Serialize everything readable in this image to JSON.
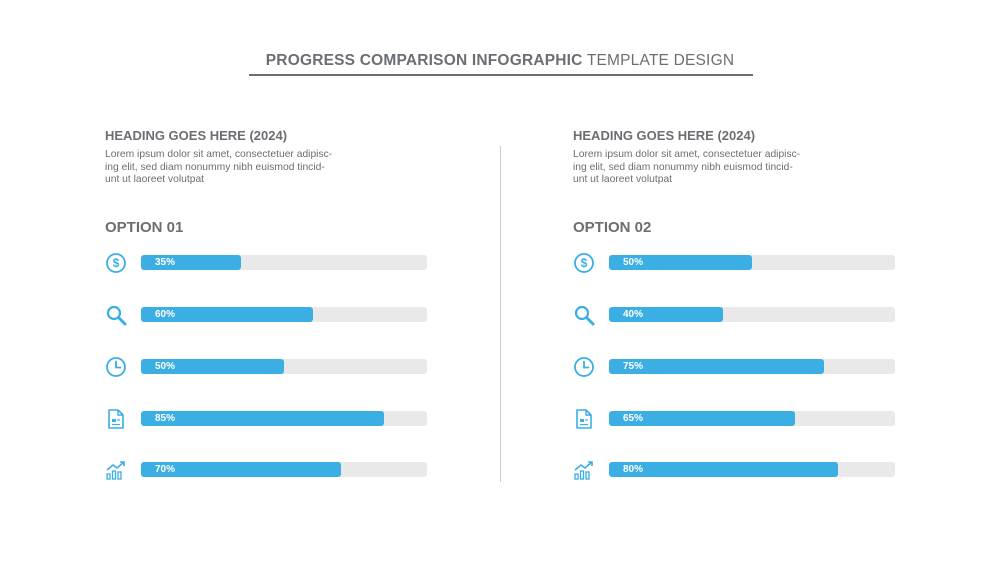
{
  "title": {
    "bold": "PROGRESS COMPARISON INFOGRAPHIC",
    "light": "TEMPLATE DESIGN"
  },
  "accent_color": "#3baee3",
  "track_color": "#e9e9e9",
  "text_color": "#6b6e72",
  "panels": [
    {
      "heading": "HEADING GOES HERE (2024)",
      "body": [
        "Lorem ipsum dolor sit amet, consectetuer adipisc-",
        "ing elit, sed diam nonummy nibh euismod tincid-",
        "unt ut laoreet volutpat"
      ],
      "option": "OPTION 01",
      "rows": [
        {
          "icon": "dollar-icon",
          "label": "35%",
          "value": 0.35
        },
        {
          "icon": "search-icon",
          "label": "60%",
          "value": 0.6
        },
        {
          "icon": "clock-icon",
          "label": "50%",
          "value": 0.5
        },
        {
          "icon": "document-icon",
          "label": "85%",
          "value": 0.85
        },
        {
          "icon": "growth-chart-icon",
          "label": "70%",
          "value": 0.7
        }
      ]
    },
    {
      "heading": "HEADING GOES HERE (2024)",
      "body": [
        "Lorem ipsum dolor sit amet, consectetuer adipisc-",
        "ing elit, sed diam nonummy nibh euismod tincid-",
        "unt ut laoreet volutpat"
      ],
      "option": "OPTION 02",
      "rows": [
        {
          "icon": "dollar-icon",
          "label": "50%",
          "value": 0.5
        },
        {
          "icon": "search-icon",
          "label": "40%",
          "value": 0.4
        },
        {
          "icon": "clock-icon",
          "label": "75%",
          "value": 0.75
        },
        {
          "icon": "document-icon",
          "label": "65%",
          "value": 0.65
        },
        {
          "icon": "growth-chart-icon",
          "label": "80%",
          "value": 0.8
        }
      ]
    }
  ]
}
